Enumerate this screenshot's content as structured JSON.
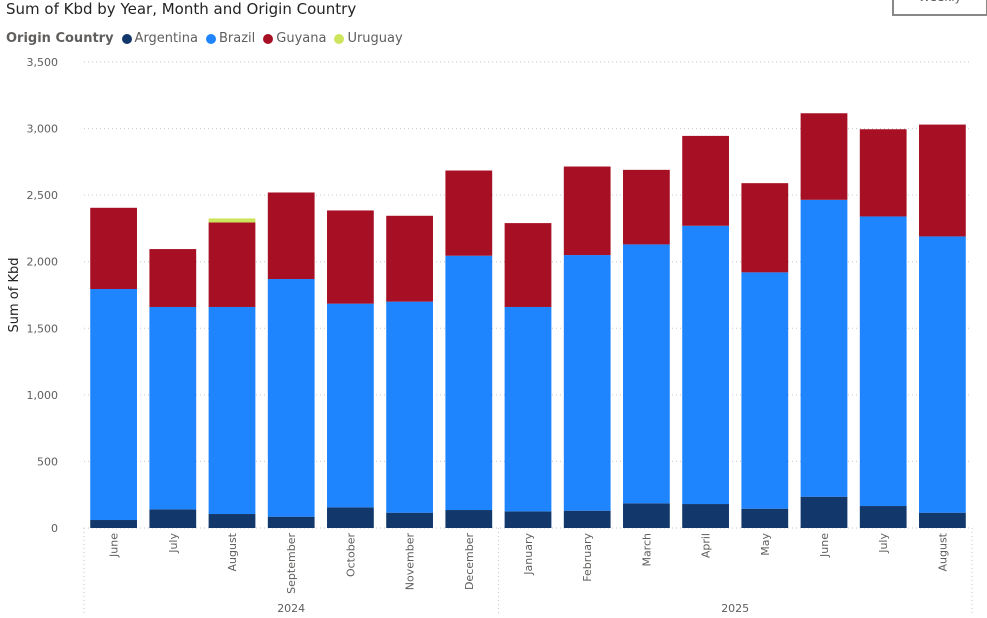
{
  "header": {
    "title": "Sum of Kbd by Year, Month and Origin Country",
    "weekly_button": "Weekly"
  },
  "legend": {
    "title": "Origin Country",
    "items": [
      {
        "label": "Argentina",
        "color": "#12386b"
      },
      {
        "label": "Brazil",
        "color": "#1f85ff"
      },
      {
        "label": "Guyana",
        "color": "#a71024"
      },
      {
        "label": "Uruguay",
        "color": "#cde55d"
      }
    ]
  },
  "chart_data": {
    "type": "bar",
    "stacked": true,
    "title": "Sum of Kbd by Year, Month and Origin Country",
    "ylabel": "Sum of Kbd",
    "ylim": [
      0,
      3500
    ],
    "yticks": [
      0,
      500,
      1000,
      1500,
      2000,
      2500,
      3000,
      3500
    ],
    "ytick_labels": [
      "0",
      "500",
      "1,000",
      "1,500",
      "2,000",
      "2,500",
      "3,000",
      "3,500"
    ],
    "grid": true,
    "legend_position": "top-left",
    "categories": [
      "June",
      "July",
      "August",
      "September",
      "October",
      "November",
      "December",
      "January",
      "February",
      "March",
      "April",
      "May",
      "June",
      "July",
      "August"
    ],
    "year_groups": [
      {
        "label": "2024",
        "count": 7
      },
      {
        "label": "2025",
        "count": 8
      }
    ],
    "series": [
      {
        "name": "Argentina",
        "color": "#12386b",
        "values": [
          60,
          140,
          105,
          85,
          155,
          115,
          135,
          125,
          130,
          185,
          180,
          145,
          235,
          165,
          115
        ]
      },
      {
        "name": "Brazil",
        "color": "#1f85ff",
        "values": [
          1735,
          1520,
          1555,
          1785,
          1530,
          1585,
          1910,
          1535,
          1920,
          1945,
          2090,
          1775,
          2230,
          2175,
          2075
        ]
      },
      {
        "name": "Guyana",
        "color": "#a71024",
        "values": [
          610,
          435,
          635,
          650,
          700,
          645,
          640,
          630,
          665,
          560,
          675,
          670,
          650,
          655,
          840
        ]
      },
      {
        "name": "Uruguay",
        "color": "#cde55d",
        "values": [
          0,
          0,
          30,
          0,
          0,
          0,
          0,
          0,
          0,
          0,
          0,
          0,
          0,
          0,
          0
        ]
      }
    ]
  }
}
